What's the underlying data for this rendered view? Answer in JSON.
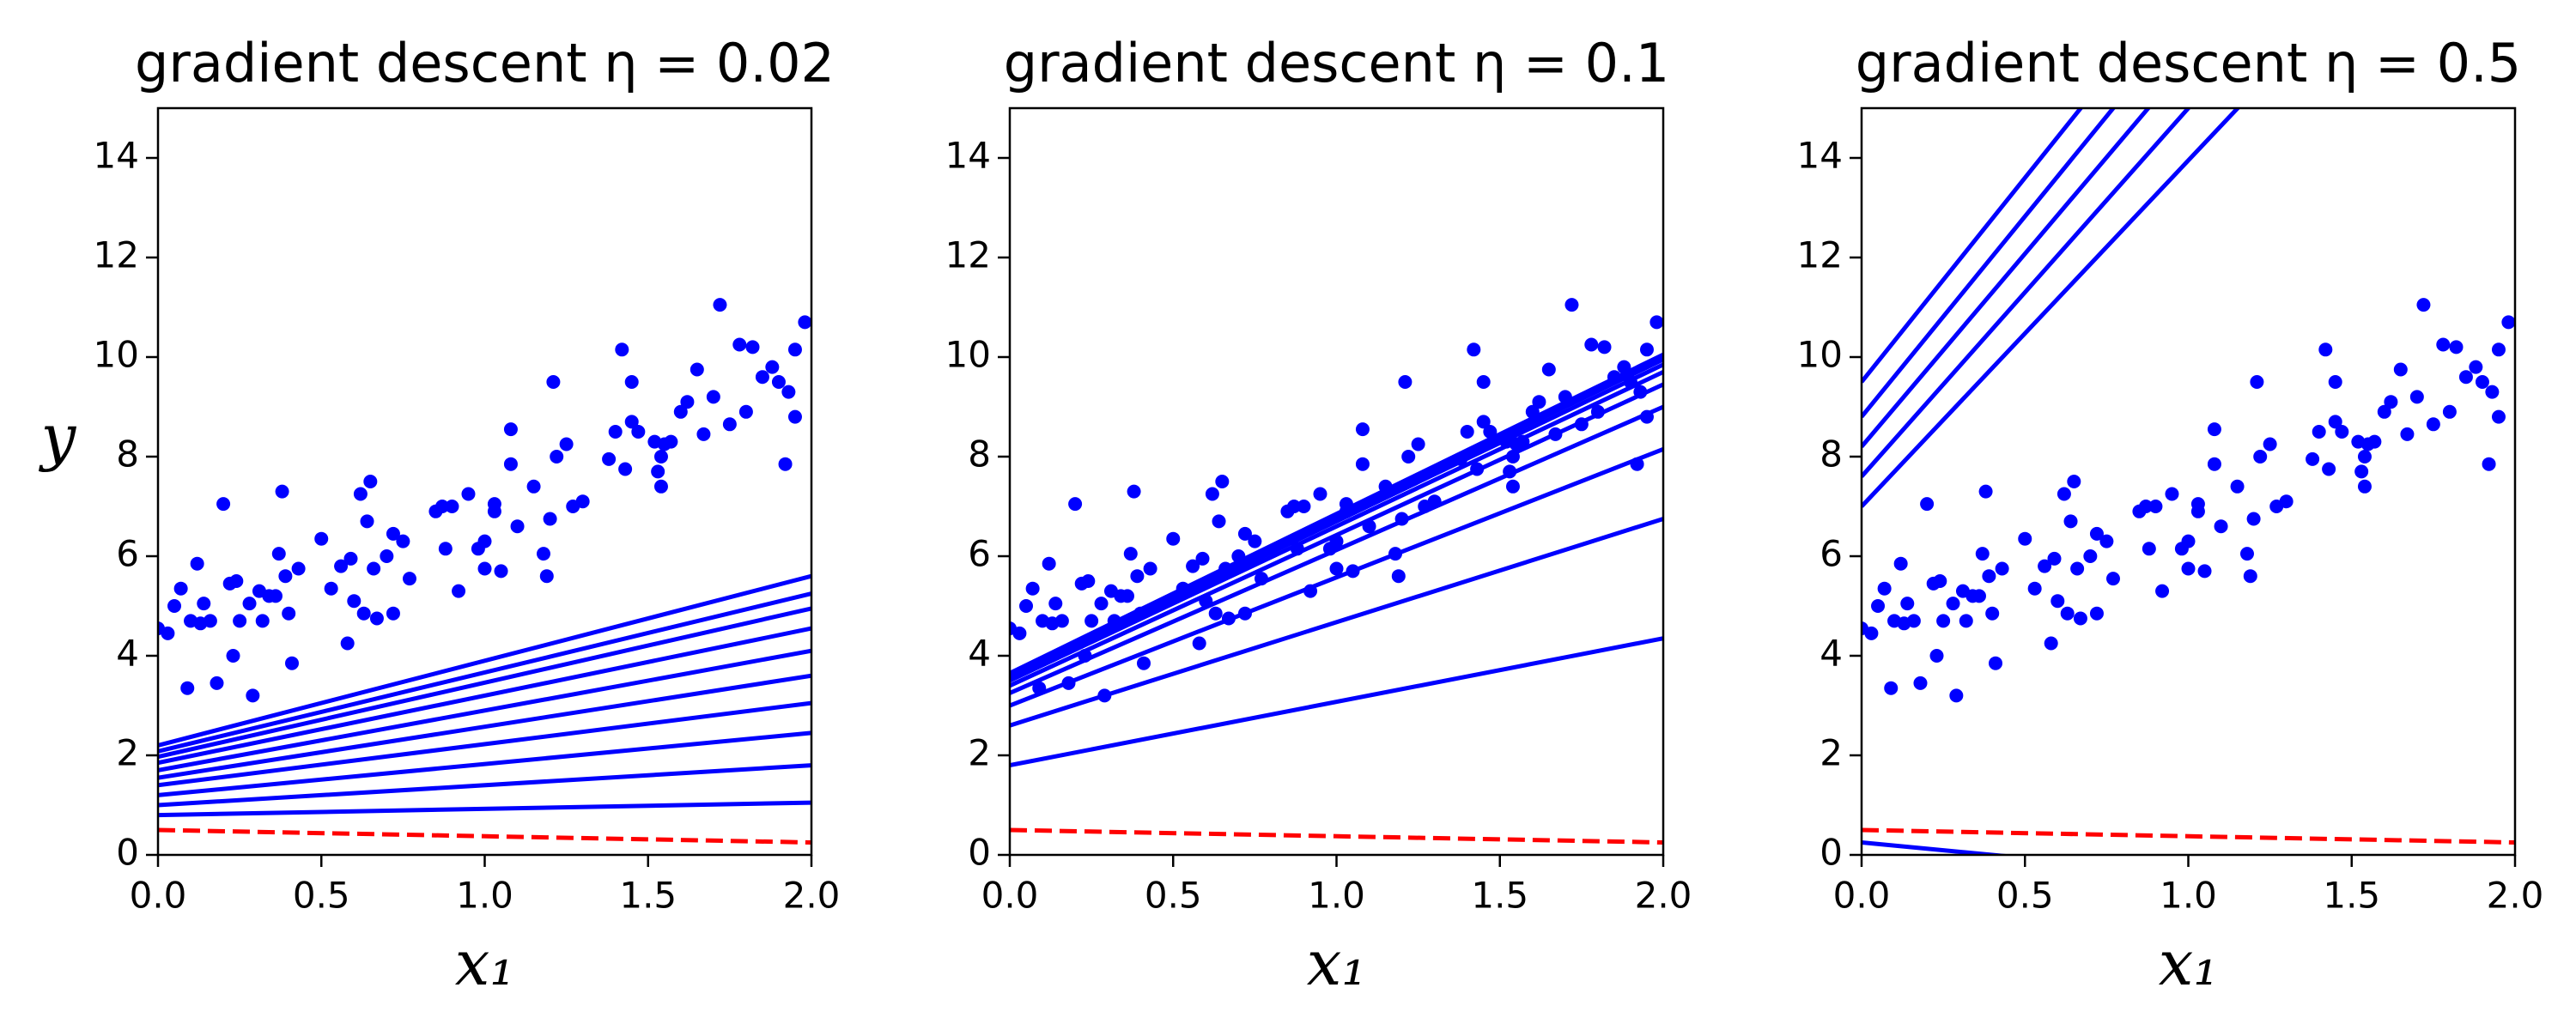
{
  "chart_data": [
    {
      "type": "scatter",
      "title": "gradient descent η = 0.02",
      "xlabel": "x₁",
      "ylabel": "y",
      "xlim": [
        0,
        2
      ],
      "ylim": [
        0,
        15
      ],
      "xticks": [
        {
          "value": 0,
          "label": "0.0"
        },
        {
          "value": 0.5,
          "label": "0.5"
        },
        {
          "value": 1,
          "label": "1.0"
        },
        {
          "value": 1.5,
          "label": "1.5"
        },
        {
          "value": 2,
          "label": "2.0"
        }
      ],
      "yticks": [
        0,
        2,
        4,
        6,
        8,
        10,
        12,
        14
      ],
      "series": [
        {
          "type": "scatter",
          "color": "#0000ff",
          "x": [
            0.0,
            0.03,
            0.05,
            0.07,
            0.09,
            0.1,
            0.12,
            0.13,
            0.14,
            0.16,
            0.18,
            0.2,
            0.22,
            0.24,
            0.23,
            0.25,
            0.28,
            0.29,
            0.31,
            0.32,
            0.34,
            0.36,
            0.37,
            0.38,
            0.39,
            0.4,
            0.41,
            0.43,
            0.5,
            0.53,
            0.56,
            0.58,
            0.59,
            0.6,
            0.62,
            0.63,
            0.64,
            0.65,
            0.66,
            0.67,
            0.7,
            0.72,
            0.72,
            0.75,
            0.77,
            0.85,
            0.87,
            0.88,
            0.9,
            0.92,
            0.95,
            0.98,
            1.0,
            1.0,
            1.03,
            1.03,
            1.05,
            1.08,
            1.08,
            1.1,
            1.15,
            1.18,
            1.19,
            1.2,
            1.21,
            1.22,
            1.25,
            1.27,
            1.3,
            1.38,
            1.4,
            1.42,
            1.43,
            1.45,
            1.45,
            1.47,
            1.52,
            1.53,
            1.54,
            1.54,
            1.55,
            1.57,
            1.6,
            1.62,
            1.65,
            1.67,
            1.7,
            1.72,
            1.75,
            1.78,
            1.8,
            1.82,
            1.85,
            1.88,
            1.9,
            1.92,
            1.93,
            1.95,
            1.95,
            1.98
          ],
          "values": [
            4.55,
            4.45,
            5.0,
            5.35,
            3.35,
            4.7,
            5.85,
            4.65,
            5.05,
            4.7,
            3.45,
            7.05,
            5.45,
            5.5,
            4.0,
            4.7,
            5.05,
            3.2,
            5.3,
            4.7,
            5.2,
            5.2,
            6.05,
            7.3,
            5.6,
            4.85,
            3.85,
            5.75,
            6.35,
            5.35,
            5.8,
            4.25,
            5.95,
            5.1,
            7.25,
            4.85,
            6.7,
            7.5,
            5.75,
            4.75,
            6.0,
            4.85,
            6.45,
            6.3,
            5.55,
            6.9,
            7.0,
            6.15,
            7.0,
            5.3,
            7.25,
            6.15,
            5.75,
            6.3,
            6.9,
            7.05,
            5.7,
            8.55,
            7.85,
            6.6,
            7.4,
            6.05,
            5.6,
            6.75,
            9.5,
            8.0,
            8.25,
            7.0,
            7.1,
            7.95,
            8.5,
            10.15,
            7.75,
            8.7,
            9.5,
            8.5,
            8.3,
            7.7,
            8.0,
            7.4,
            8.25,
            8.3,
            8.9,
            9.1,
            9.75,
            8.45,
            9.2,
            11.05,
            8.65,
            10.25,
            8.9,
            10.2,
            9.6,
            9.8,
            9.5,
            7.85,
            9.3,
            10.15,
            8.8,
            10.7
          ]
        },
        {
          "type": "line",
          "color": "#ff0000",
          "linestyle": "dashed",
          "x": [
            0,
            2
          ],
          "values": [
            0.5,
            0.25
          ]
        },
        {
          "type": "line",
          "color": "#0000ff",
          "x": [
            0,
            2
          ],
          "values": [
            0.8,
            1.05
          ]
        },
        {
          "type": "line",
          "color": "#0000ff",
          "x": [
            0,
            2
          ],
          "values": [
            1.0,
            1.8
          ]
        },
        {
          "type": "line",
          "color": "#0000ff",
          "x": [
            0,
            2
          ],
          "values": [
            1.2,
            2.45
          ]
        },
        {
          "type": "line",
          "color": "#0000ff",
          "x": [
            0,
            2
          ],
          "values": [
            1.4,
            3.05
          ]
        },
        {
          "type": "line",
          "color": "#0000ff",
          "x": [
            0,
            2
          ],
          "values": [
            1.55,
            3.6
          ]
        },
        {
          "type": "line",
          "color": "#0000ff",
          "x": [
            0,
            2
          ],
          "values": [
            1.7,
            4.1
          ]
        },
        {
          "type": "line",
          "color": "#0000ff",
          "x": [
            0,
            2
          ],
          "values": [
            1.85,
            4.55
          ]
        },
        {
          "type": "line",
          "color": "#0000ff",
          "x": [
            0,
            2
          ],
          "values": [
            1.97,
            4.95
          ]
        },
        {
          "type": "line",
          "color": "#0000ff",
          "x": [
            0,
            2
          ],
          "values": [
            2.08,
            5.25
          ]
        },
        {
          "type": "line",
          "color": "#0000ff",
          "x": [
            0,
            2
          ],
          "values": [
            2.2,
            5.6
          ]
        }
      ]
    },
    {
      "type": "scatter",
      "title": "gradient descent η = 0.1",
      "xlabel": "x₁",
      "xlim": [
        0,
        2
      ],
      "ylim": [
        0,
        15
      ],
      "xticks": [
        {
          "value": 0,
          "label": "0.0"
        },
        {
          "value": 0.5,
          "label": "0.5"
        },
        {
          "value": 1,
          "label": "1.0"
        },
        {
          "value": 1.5,
          "label": "1.5"
        },
        {
          "value": 2,
          "label": "2.0"
        }
      ],
      "yticks": [
        0,
        2,
        4,
        6,
        8,
        10,
        12,
        14
      ],
      "series": [
        {
          "type": "scatter",
          "color": "#0000ff",
          "x": [
            0.0,
            0.03,
            0.05,
            0.07,
            0.09,
            0.1,
            0.12,
            0.13,
            0.14,
            0.16,
            0.18,
            0.2,
            0.22,
            0.24,
            0.23,
            0.25,
            0.28,
            0.29,
            0.31,
            0.32,
            0.34,
            0.36,
            0.37,
            0.38,
            0.39,
            0.4,
            0.41,
            0.43,
            0.5,
            0.53,
            0.56,
            0.58,
            0.59,
            0.6,
            0.62,
            0.63,
            0.64,
            0.65,
            0.66,
            0.67,
            0.7,
            0.72,
            0.72,
            0.75,
            0.77,
            0.85,
            0.87,
            0.88,
            0.9,
            0.92,
            0.95,
            0.98,
            1.0,
            1.0,
            1.03,
            1.03,
            1.05,
            1.08,
            1.08,
            1.1,
            1.15,
            1.18,
            1.19,
            1.2,
            1.21,
            1.22,
            1.25,
            1.27,
            1.3,
            1.38,
            1.4,
            1.42,
            1.43,
            1.45,
            1.45,
            1.47,
            1.52,
            1.53,
            1.54,
            1.54,
            1.55,
            1.57,
            1.6,
            1.62,
            1.65,
            1.67,
            1.7,
            1.72,
            1.75,
            1.78,
            1.8,
            1.82,
            1.85,
            1.88,
            1.9,
            1.92,
            1.93,
            1.95,
            1.95,
            1.98
          ],
          "values": [
            4.55,
            4.45,
            5.0,
            5.35,
            3.35,
            4.7,
            5.85,
            4.65,
            5.05,
            4.7,
            3.45,
            7.05,
            5.45,
            5.5,
            4.0,
            4.7,
            5.05,
            3.2,
            5.3,
            4.7,
            5.2,
            5.2,
            6.05,
            7.3,
            5.6,
            4.85,
            3.85,
            5.75,
            6.35,
            5.35,
            5.8,
            4.25,
            5.95,
            5.1,
            7.25,
            4.85,
            6.7,
            7.5,
            5.75,
            4.75,
            6.0,
            4.85,
            6.45,
            6.3,
            5.55,
            6.9,
            7.0,
            6.15,
            7.0,
            5.3,
            7.25,
            6.15,
            5.75,
            6.3,
            6.9,
            7.05,
            5.7,
            8.55,
            7.85,
            6.6,
            7.4,
            6.05,
            5.6,
            6.75,
            9.5,
            8.0,
            8.25,
            7.0,
            7.1,
            7.95,
            8.5,
            10.15,
            7.75,
            8.7,
            9.5,
            8.5,
            8.3,
            7.7,
            8.0,
            7.4,
            8.25,
            8.3,
            8.9,
            9.1,
            9.75,
            8.45,
            9.2,
            11.05,
            8.65,
            10.25,
            8.9,
            10.2,
            9.6,
            9.8,
            9.5,
            7.85,
            9.3,
            10.15,
            8.8,
            10.7
          ]
        },
        {
          "type": "line",
          "color": "#ff0000",
          "linestyle": "dashed",
          "x": [
            0,
            2
          ],
          "values": [
            0.5,
            0.25
          ]
        },
        {
          "type": "line",
          "color": "#0000ff",
          "x": [
            0,
            2
          ],
          "values": [
            1.8,
            4.35
          ]
        },
        {
          "type": "line",
          "color": "#0000ff",
          "x": [
            0,
            2
          ],
          "values": [
            2.6,
            6.75
          ]
        },
        {
          "type": "line",
          "color": "#0000ff",
          "x": [
            0,
            2
          ],
          "values": [
            3.0,
            8.15
          ]
        },
        {
          "type": "line",
          "color": "#0000ff",
          "x": [
            0,
            2
          ],
          "values": [
            3.25,
            9.0
          ]
        },
        {
          "type": "line",
          "color": "#0000ff",
          "x": [
            0,
            2
          ],
          "values": [
            3.4,
            9.45
          ]
        },
        {
          "type": "line",
          "color": "#0000ff",
          "x": [
            0,
            2
          ],
          "values": [
            3.5,
            9.7
          ]
        },
        {
          "type": "line",
          "color": "#0000ff",
          "x": [
            0,
            2
          ],
          "values": [
            3.55,
            9.85
          ]
        },
        {
          "type": "line",
          "color": "#0000ff",
          "x": [
            0,
            2
          ],
          "values": [
            3.6,
            9.95
          ]
        },
        {
          "type": "line",
          "color": "#0000ff",
          "x": [
            0,
            2
          ],
          "values": [
            3.62,
            10.0
          ]
        },
        {
          "type": "line",
          "color": "#0000ff",
          "x": [
            0,
            2
          ],
          "values": [
            3.65,
            10.05
          ]
        }
      ]
    },
    {
      "type": "scatter",
      "title": "gradient descent η = 0.5",
      "xlabel": "x₁",
      "xlim": [
        0,
        2
      ],
      "ylim": [
        0,
        15
      ],
      "xticks": [
        {
          "value": 0,
          "label": "0.0"
        },
        {
          "value": 0.5,
          "label": "0.5"
        },
        {
          "value": 1,
          "label": "1.0"
        },
        {
          "value": 1.5,
          "label": "1.5"
        },
        {
          "value": 2,
          "label": "2.0"
        }
      ],
      "yticks": [
        0,
        2,
        4,
        6,
        8,
        10,
        12,
        14
      ],
      "series": [
        {
          "type": "scatter",
          "color": "#0000ff",
          "x": [
            0.0,
            0.03,
            0.05,
            0.07,
            0.09,
            0.1,
            0.12,
            0.13,
            0.14,
            0.16,
            0.18,
            0.2,
            0.22,
            0.24,
            0.23,
            0.25,
            0.28,
            0.29,
            0.31,
            0.32,
            0.34,
            0.36,
            0.37,
            0.38,
            0.39,
            0.4,
            0.41,
            0.43,
            0.5,
            0.53,
            0.56,
            0.58,
            0.59,
            0.6,
            0.62,
            0.63,
            0.64,
            0.65,
            0.66,
            0.67,
            0.7,
            0.72,
            0.72,
            0.75,
            0.77,
            0.85,
            0.87,
            0.88,
            0.9,
            0.92,
            0.95,
            0.98,
            1.0,
            1.0,
            1.03,
            1.03,
            1.05,
            1.08,
            1.08,
            1.1,
            1.15,
            1.18,
            1.19,
            1.2,
            1.21,
            1.22,
            1.25,
            1.27,
            1.3,
            1.38,
            1.4,
            1.42,
            1.43,
            1.45,
            1.45,
            1.47,
            1.52,
            1.53,
            1.54,
            1.54,
            1.55,
            1.57,
            1.6,
            1.62,
            1.65,
            1.67,
            1.7,
            1.72,
            1.75,
            1.78,
            1.8,
            1.82,
            1.85,
            1.88,
            1.9,
            1.92,
            1.93,
            1.95,
            1.95,
            1.98
          ],
          "values": [
            4.55,
            4.45,
            5.0,
            5.35,
            3.35,
            4.7,
            5.85,
            4.65,
            5.05,
            4.7,
            3.45,
            7.05,
            5.45,
            5.5,
            4.0,
            4.7,
            5.05,
            3.2,
            5.3,
            4.7,
            5.2,
            5.2,
            6.05,
            7.3,
            5.6,
            4.85,
            3.85,
            5.75,
            6.35,
            5.35,
            5.8,
            4.25,
            5.95,
            5.1,
            7.25,
            4.85,
            6.7,
            7.5,
            5.75,
            4.75,
            6.0,
            4.85,
            6.45,
            6.3,
            5.55,
            6.9,
            7.0,
            6.15,
            7.0,
            5.3,
            7.25,
            6.15,
            5.75,
            6.3,
            6.9,
            7.05,
            5.7,
            8.55,
            7.85,
            6.6,
            7.4,
            6.05,
            5.6,
            6.75,
            9.5,
            8.0,
            8.25,
            7.0,
            7.1,
            7.95,
            8.5,
            10.15,
            7.75,
            8.7,
            9.5,
            8.5,
            8.3,
            7.7,
            8.0,
            7.4,
            8.25,
            8.3,
            8.9,
            9.1,
            9.75,
            8.45,
            9.2,
            11.05,
            8.65,
            10.25,
            8.9,
            10.2,
            9.6,
            9.8,
            9.5,
            7.85,
            9.3,
            10.15,
            8.8,
            10.7
          ]
        },
        {
          "type": "line",
          "color": "#ff0000",
          "linestyle": "dashed",
          "x": [
            0,
            2
          ],
          "values": [
            0.5,
            0.25
          ]
        },
        {
          "type": "line",
          "color": "#0000ff",
          "x": [
            0,
            2
          ],
          "values": [
            0.25,
            -1.0
          ]
        },
        {
          "type": "line",
          "color": "#0000ff",
          "x": [
            0,
            2
          ],
          "values": [
            7.0,
            20.9
          ]
        },
        {
          "type": "line",
          "color": "#0000ff",
          "x": [
            0,
            2
          ],
          "values": [
            7.6,
            22.4
          ]
        },
        {
          "type": "line",
          "color": "#0000ff",
          "x": [
            0,
            2
          ],
          "values": [
            8.2,
            23.7
          ]
        },
        {
          "type": "line",
          "color": "#0000ff",
          "x": [
            0,
            2
          ],
          "values": [
            8.8,
            24.9
          ]
        },
        {
          "type": "line",
          "color": "#0000ff",
          "x": [
            0,
            2
          ],
          "values": [
            9.5,
            25.9
          ]
        }
      ]
    }
  ]
}
